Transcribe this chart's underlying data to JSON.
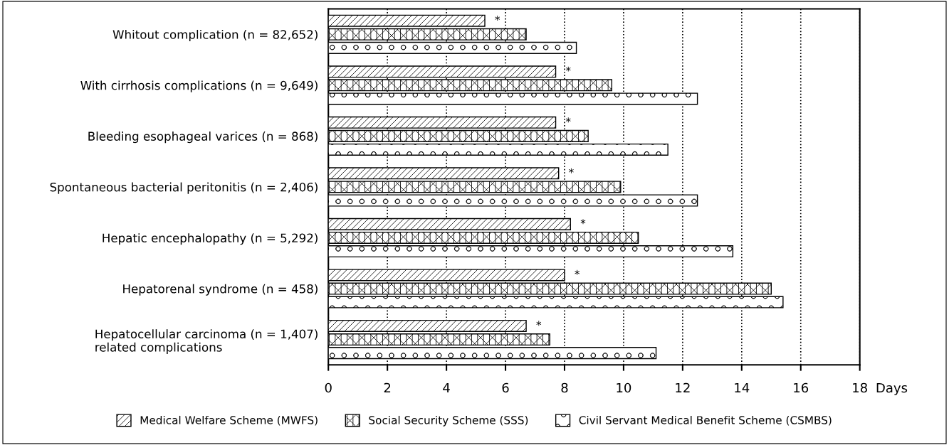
{
  "chart_data": {
    "type": "bar",
    "orientation": "horizontal",
    "xlabel": "Days",
    "categories": [
      "Whitout complication (n = 82,652)",
      "With cirrhosis complications (n = 9,649)",
      "Bleeding esophageal varices (n = 868)",
      "Spontaneous bacterial peritonitis (n = 2,406)",
      "Hepatic encephalopathy (n = 5,292)",
      "Hepatorenal syndrome (n = 458)",
      "Hepatocellular carcinoma (n = 1,407)\nrelated complications"
    ],
    "series": [
      {
        "name": "Medical Welfare Scheme (MWFS)",
        "color": "#000000",
        "values": [
          5.3,
          7.7,
          7.7,
          7.8,
          8.2,
          8.0,
          6.7
        ],
        "value_labels": [
          "*",
          "*",
          "*",
          "*",
          "*",
          "*",
          "*"
        ]
      },
      {
        "name": "Social Security Scheme (SSS)",
        "color": "#000000",
        "values": [
          6.7,
          9.6,
          8.8,
          9.9,
          10.5,
          15.0,
          7.5
        ]
      },
      {
        "name": "Civil Servant Medical Benefit Scheme (CSMBS)",
        "color": "#000000",
        "values": [
          8.4,
          12.5,
          11.5,
          12.5,
          13.7,
          15.4,
          11.1
        ]
      }
    ],
    "xlim": [
      0,
      18
    ],
    "xticks": [
      0,
      2,
      4,
      6,
      8,
      10,
      12,
      14,
      16,
      18
    ],
    "grid": "x",
    "legend": "bottom"
  }
}
